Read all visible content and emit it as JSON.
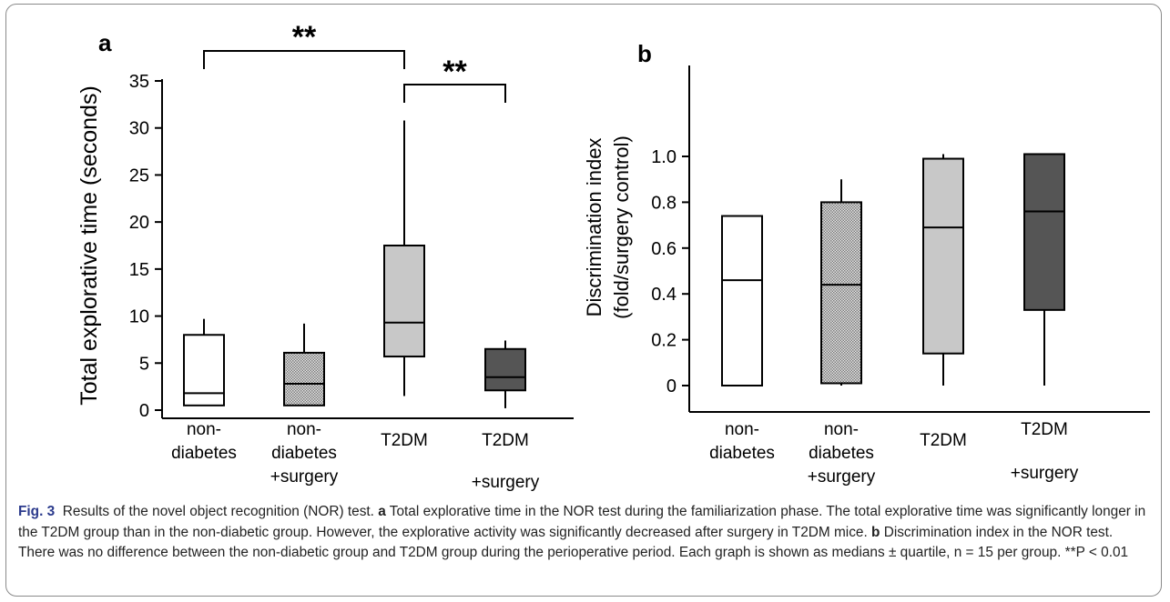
{
  "chart_data": [
    {
      "type": "box",
      "panel": "a",
      "ylabel": "Total explorative time (seconds)",
      "ylim": [
        0,
        35
      ],
      "yticks": [
        0,
        5,
        10,
        15,
        20,
        25,
        30,
        35
      ],
      "categories": [
        [
          "non-",
          "diabetes"
        ],
        [
          "non-",
          "diabetes",
          "+surgery"
        ],
        [
          "T2DM"
        ],
        [
          "T2DM",
          "+surgery"
        ]
      ],
      "boxes": [
        {
          "min": 0.5,
          "q1": 0.5,
          "median": 1.8,
          "q3": 8.0,
          "max": 9.7,
          "fill": "#ffffff"
        },
        {
          "min": 0.5,
          "q1": 0.5,
          "median": 2.8,
          "q3": 6.1,
          "max": 9.2,
          "fill": "#d4d4d4"
        },
        {
          "min": 1.5,
          "q1": 5.7,
          "median": 9.3,
          "q3": 17.5,
          "max": 30.8,
          "fill": "#c8c8c8"
        },
        {
          "min": 0.2,
          "q1": 2.1,
          "median": 3.5,
          "q3": 6.5,
          "max": 7.4,
          "fill": "#555555"
        }
      ],
      "significance": [
        {
          "from": 0,
          "to": 2,
          "label": "**"
        },
        {
          "from": 2,
          "to": 3,
          "label": "**"
        }
      ],
      "grid": false
    },
    {
      "type": "box",
      "panel": "b",
      "ylabel": "Discrimination index (fold/surgery control)",
      "ylabel_lines": [
        "Discrimination index",
        "(fold/surgery control)"
      ],
      "ylim": [
        0,
        1.1
      ],
      "yticks": [
        "0",
        "0.2",
        "0.4",
        "0.6",
        "0.8",
        "1.0"
      ],
      "categories": [
        [
          "non-",
          "diabetes"
        ],
        [
          "non-",
          "diabetes",
          "+surgery"
        ],
        [
          "T2DM"
        ],
        [
          "T2DM",
          "+surgery"
        ]
      ],
      "boxes": [
        {
          "min": 0.0,
          "q1": 0.0,
          "median": 0.46,
          "q3": 0.74,
          "max": 0.74,
          "fill": "#ffffff"
        },
        {
          "min": 0.0,
          "q1": 0.01,
          "median": 0.44,
          "q3": 0.8,
          "max": 0.9,
          "fill": "#d4d4d4"
        },
        {
          "min": 0.0,
          "q1": 0.14,
          "median": 0.69,
          "q3": 0.99,
          "max": 1.01,
          "fill": "#c8c8c8"
        },
        {
          "min": 0.0,
          "q1": 0.33,
          "median": 0.76,
          "q3": 1.01,
          "max": 1.01,
          "fill": "#555555"
        }
      ],
      "grid": false
    }
  ],
  "caption": {
    "fig_label": "Fig. 3",
    "intro": "Results of the novel object recognition (NOR) test. ",
    "a_label": "a",
    "a_text": " Total explorative time in the NOR test during the familiarization phase. The total explorative time was significantly longer in the T2DM group than in the non-diabetic group. However, the explorative activity was significantly decreased after surgery in T2DM mice. ",
    "b_label": "b",
    "b_text": " Discrimination index in the NOR test. There was no difference between the non-diabetic group and T2DM group during the perioperative period. Each graph is shown as medians ± quartile, n = 15 per group. **P < 0.01"
  }
}
